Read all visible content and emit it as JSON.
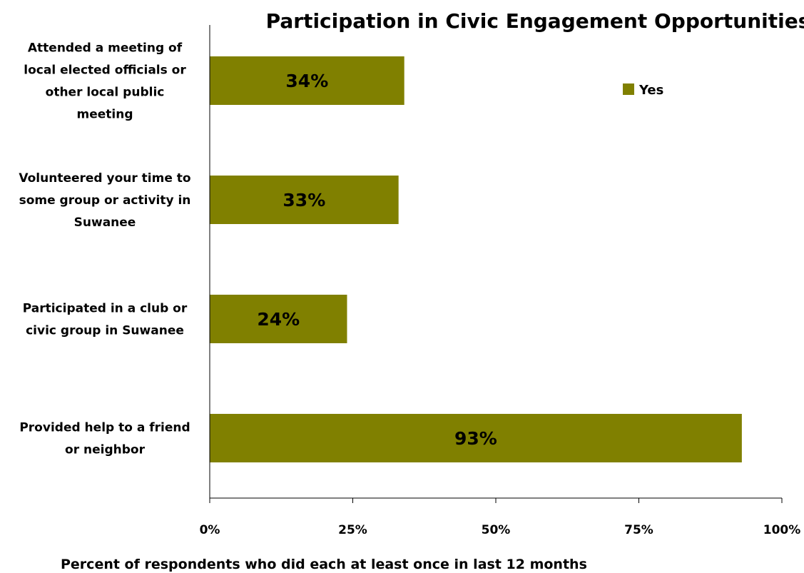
{
  "chart_data": {
    "type": "bar",
    "orientation": "horizontal",
    "title": "Participation in Civic Engagement Opportunities",
    "xlabel": "Percent of respondents who did each at least once in last 12 months",
    "ylabel": "",
    "xlim": [
      0,
      100
    ],
    "ticks": [
      "0%",
      "25%",
      "50%",
      "75%",
      "100%"
    ],
    "tick_values": [
      0,
      25,
      50,
      75,
      100
    ],
    "grid": false,
    "legend_position": "top-right",
    "series": [
      {
        "name": "Yes",
        "color": "#808000",
        "values": [
          34,
          33,
          24,
          93
        ],
        "data_labels": [
          "34%",
          "33%",
          "24%",
          "93%"
        ]
      }
    ],
    "categories": [
      [
        "Attended a meeting of",
        "local elected officials or",
        "other local public",
        "meeting"
      ],
      [
        "Volunteered your time to",
        "some group or activity in",
        "Suwanee"
      ],
      [
        "Participated in a club or",
        "civic group in Suwanee"
      ],
      [
        "Provided help to a friend",
        "or neighbor"
      ]
    ]
  }
}
